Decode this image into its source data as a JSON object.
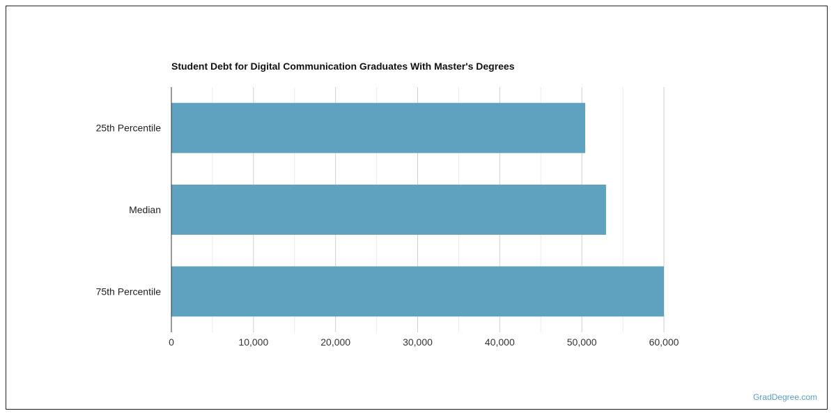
{
  "watermark": "GradDegree.com",
  "chart_data": {
    "type": "bar",
    "orientation": "horizontal",
    "title": "Student Debt for Digital Communication Graduates With Master's Degrees",
    "categories": [
      "25th Percentile",
      "Median",
      "75th Percentile"
    ],
    "values": [
      50410,
      52948,
      60000
    ],
    "xlim": [
      0,
      60000
    ],
    "xticks": [
      "0",
      "10,000",
      "20,000",
      "30,000",
      "40,000",
      "50,000",
      "60,000"
    ],
    "grid": true,
    "bar_color": "#5fa2bf"
  }
}
